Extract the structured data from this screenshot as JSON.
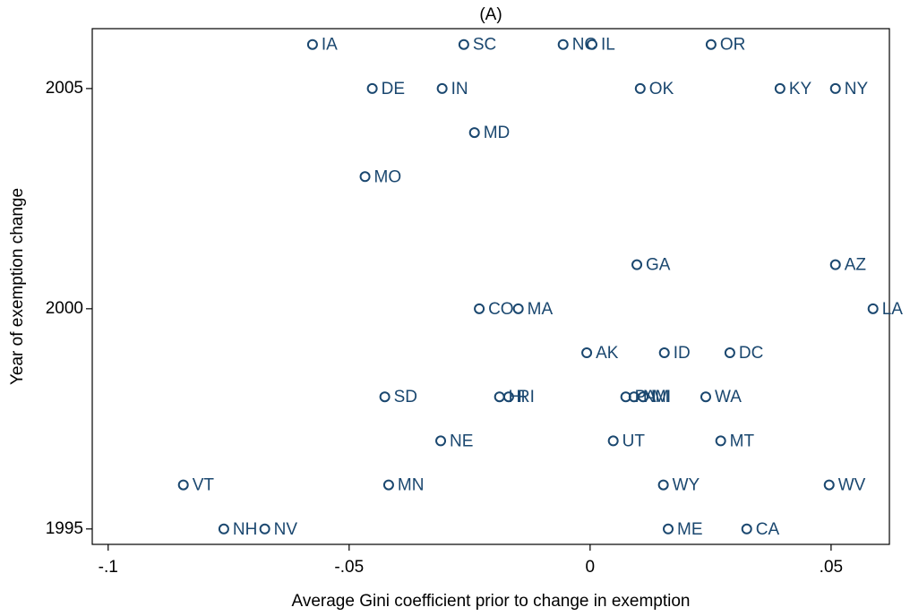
{
  "chart_data": {
    "type": "scatter",
    "title": "(A)",
    "x_label": "Average Gini coefficient prior to change in exemption",
    "y_label": "Year of exemption change",
    "color": "#1a476f",
    "labels": [
      "IA",
      "SC",
      "NC",
      "IL",
      "OR",
      "DE",
      "IN",
      "OK",
      "KY",
      "NY",
      "MD",
      "MO",
      "GA",
      "AZ",
      "CO",
      "MA",
      "LA",
      "AK",
      "ID",
      "DC",
      "SD",
      "HI",
      "RI",
      "PA",
      "NM",
      "MI",
      "WA",
      "NE",
      "UT",
      "MT",
      "VT",
      "MN",
      "WY",
      "WV",
      "NH",
      "NV",
      "ME",
      "CA"
    ],
    "x": [
      -0.0576,
      -0.0262,
      -0.0056,
      0.0004,
      0.0251,
      -0.0452,
      -0.0307,
      0.0104,
      0.0394,
      0.0509,
      -0.024,
      -0.0467,
      0.0097,
      0.0509,
      -0.023,
      -0.0149,
      0.0587,
      -0.0007,
      0.0154,
      0.029,
      -0.0426,
      -0.0188,
      -0.0169,
      0.0074,
      0.0091,
      0.011,
      0.024,
      -0.031,
      0.0048,
      0.0271,
      -0.0844,
      -0.0418,
      0.0152,
      0.0496,
      -0.076,
      -0.0675,
      0.0162,
      0.0325
    ],
    "y": [
      2006,
      2006,
      2006,
      2006,
      2006,
      2005,
      2005,
      2005,
      2005,
      2005,
      2004,
      2003,
      2001,
      2001,
      2000,
      2000,
      2000,
      1999,
      1999,
      1999,
      1998,
      1998,
      1998,
      1998,
      1998,
      1998,
      1998,
      1997,
      1997,
      1997,
      1996,
      1996,
      1996,
      1996,
      1995,
      1995,
      1995,
      1995
    ],
    "xlim": [
      -0.1033,
      0.0621
    ],
    "ylim": [
      1994.65,
      2006.36
    ],
    "xticks": [
      {
        "value": -0.1,
        "label": "-.1"
      },
      {
        "value": -0.05,
        "label": "-.05"
      },
      0,
      {
        "value": 0.05,
        "label": ".05"
      }
    ],
    "yticks": [
      1995,
      2000,
      2005
    ]
  }
}
